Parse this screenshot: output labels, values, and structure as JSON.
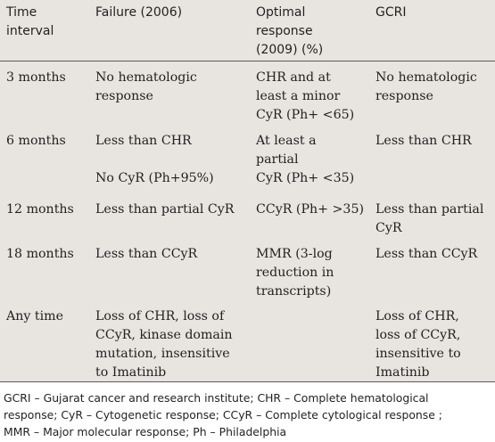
{
  "table": {
    "headers": [
      [
        "Time",
        "interval"
      ],
      [
        "Failure (2006)"
      ],
      [
        "Optimal",
        "response",
        "(2009) (%)"
      ],
      [
        "GCRI"
      ]
    ],
    "rows": [
      {
        "time": [
          "3 months"
        ],
        "failure": [
          "No hematologic",
          "response"
        ],
        "optimal": [
          "CHR and at",
          "least a minor",
          "CyR (Ph+ <65)"
        ],
        "gcri": [
          "No hematologic",
          "response"
        ]
      },
      {
        "time": [
          "6 months"
        ],
        "failure": [
          "Less than CHR",
          "",
          "No CyR (Ph+95%)"
        ],
        "optimal": [
          "At least a",
          "partial",
          "CyR (Ph+ <35)"
        ],
        "gcri": [
          "Less than CHR"
        ]
      },
      {
        "time": [
          "12 months"
        ],
        "failure": [
          "Less than partial CyR"
        ],
        "optimal": [
          "CCyR (Ph+ >35)"
        ],
        "gcri": [
          "Less than partial",
          "CyR"
        ]
      },
      {
        "time": [
          "18 months"
        ],
        "failure": [
          "Less than CCyR"
        ],
        "optimal": [
          "MMR (3-log",
          "reduction in",
          "transcripts)"
        ],
        "gcri": [
          "Less than CCyR"
        ]
      },
      {
        "time": [
          "Any time"
        ],
        "failure": [
          "Loss of CHR, loss of",
          "CCyR, kinase domain",
          "mutation, insensitive",
          "to Imatinib"
        ],
        "optimal": [],
        "gcri": [
          "Loss of CHR,",
          "loss of CCyR,",
          "insensitive to",
          "Imatinib"
        ]
      }
    ]
  },
  "footnote": [
    "GCRI – Gujarat cancer and research institute; CHR – Complete hematological",
    "response; CyR – Cytogenetic response; CCyR – Complete cytological response ;",
    "MMR – Major molecular response; Ph – Philadelphia"
  ]
}
